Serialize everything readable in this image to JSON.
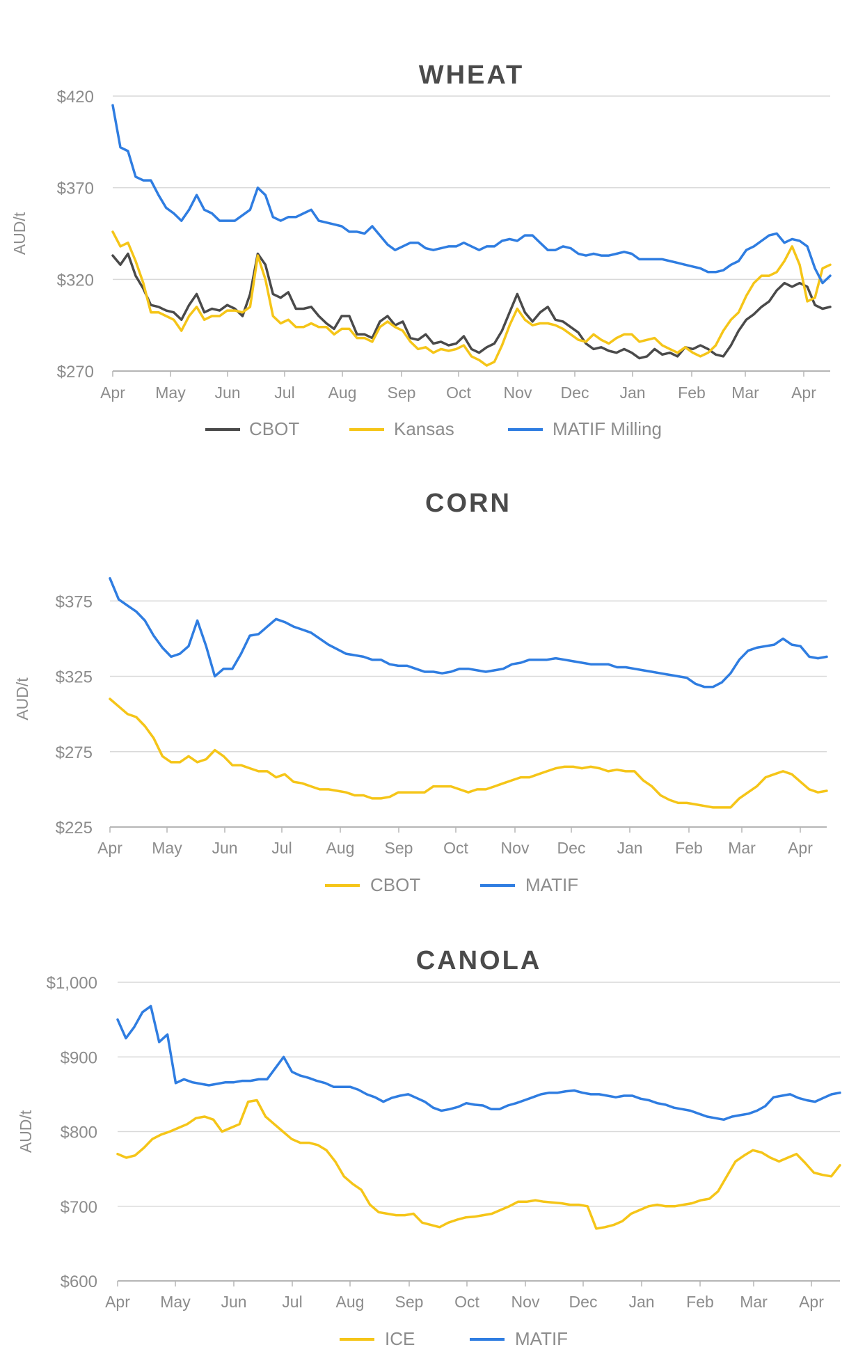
{
  "months": [
    "Apr",
    "May",
    "Jun",
    "Jul",
    "Aug",
    "Sep",
    "Oct",
    "Nov",
    "Dec",
    "Jan",
    "Feb",
    "Mar",
    "Apr"
  ],
  "colors": {
    "black": "#4a4a4a",
    "yellow": "#f5c518",
    "blue": "#2f7de1",
    "grid": "#d9d9d9",
    "axis": "#b5b5b5",
    "text": "#8c8c8c",
    "title": "#4a4a4a"
  },
  "chart_data": [
    {
      "type": "line",
      "title": "WHEAT",
      "ylabel": "AUD/t",
      "xlabel": "",
      "x_ticks": [
        "Apr",
        "May",
        "Jun",
        "Jul",
        "Aug",
        "Sep",
        "Oct",
        "Nov",
        "Dec",
        "Jan",
        "Feb",
        "Mar",
        "Apr"
      ],
      "y_ticks": [
        270,
        320,
        370,
        420
      ],
      "y_tick_labels": [
        "$270",
        "$320",
        "$370",
        "$420"
      ],
      "ylim": [
        270,
        420
      ],
      "grid": true,
      "legend": "bottom",
      "series": [
        {
          "name": "CBOT",
          "color": "#4a4a4a",
          "values": [
            333,
            328,
            334,
            322,
            315,
            306,
            305,
            303,
            302,
            298,
            306,
            312,
            302,
            304,
            303,
            306,
            304,
            300,
            312,
            334,
            328,
            312,
            310,
            313,
            304,
            304,
            305,
            300,
            296,
            293,
            300,
            300,
            290,
            290,
            288,
            297,
            300,
            295,
            297,
            288,
            287,
            290,
            285,
            286,
            284,
            285,
            289,
            282,
            280,
            283,
            285,
            292,
            302,
            312,
            302,
            297,
            302,
            305,
            298,
            297,
            294,
            291,
            285,
            282,
            283,
            281,
            280,
            282,
            280,
            277,
            278,
            282,
            279,
            280,
            278,
            283,
            282,
            284,
            282,
            279,
            278,
            284,
            292,
            298,
            301,
            305,
            308,
            314,
            318,
            316,
            318,
            316,
            306,
            304,
            305
          ]
        },
        {
          "name": "Kansas",
          "color": "#f5c518",
          "values": [
            346,
            338,
            340,
            330,
            318,
            302,
            302,
            300,
            298,
            292,
            300,
            305,
            298,
            300,
            300,
            303,
            303,
            302,
            305,
            333,
            320,
            300,
            296,
            298,
            294,
            294,
            296,
            294,
            294,
            290,
            293,
            293,
            288,
            288,
            286,
            294,
            297,
            294,
            292,
            286,
            282,
            283,
            280,
            282,
            281,
            282,
            284,
            278,
            276,
            273,
            275,
            284,
            295,
            304,
            298,
            295,
            296,
            296,
            295,
            293,
            290,
            287,
            286,
            290,
            287,
            285,
            288,
            290,
            290,
            286,
            287,
            288,
            284,
            282,
            280,
            283,
            280,
            278,
            280,
            284,
            292,
            298,
            302,
            311,
            318,
            322,
            322,
            324,
            330,
            338,
            328,
            308,
            310,
            326,
            328
          ]
        },
        {
          "name": "MATIF Milling",
          "color": "#2f7de1",
          "values": [
            415,
            392,
            390,
            376,
            374,
            374,
            366,
            359,
            356,
            352,
            358,
            366,
            358,
            356,
            352,
            352,
            352,
            355,
            358,
            370,
            366,
            354,
            352,
            354,
            354,
            356,
            358,
            352,
            351,
            350,
            349,
            346,
            346,
            345,
            349,
            344,
            339,
            336,
            338,
            340,
            340,
            337,
            336,
            337,
            338,
            338,
            340,
            338,
            336,
            338,
            338,
            341,
            342,
            341,
            344,
            344,
            340,
            336,
            336,
            338,
            337,
            334,
            333,
            334,
            333,
            333,
            334,
            335,
            334,
            331,
            331,
            331,
            331,
            330,
            329,
            328,
            327,
            326,
            324,
            324,
            325,
            328,
            330,
            336,
            338,
            341,
            344,
            345,
            340,
            342,
            341,
            338,
            326,
            318,
            322
          ]
        }
      ]
    },
    {
      "type": "line",
      "title": "CORN",
      "ylabel": "AUD/t",
      "xlabel": "",
      "x_ticks": [
        "Apr",
        "May",
        "Jun",
        "Jul",
        "Aug",
        "Sep",
        "Oct",
        "Nov",
        "Dec",
        "Jan",
        "Feb",
        "Mar",
        "Apr"
      ],
      "y_ticks": [
        225,
        275,
        325,
        375
      ],
      "y_tick_labels": [
        "$225",
        "$275",
        "$325",
        "$375"
      ],
      "ylim": [
        225,
        395
      ],
      "grid": true,
      "legend": "bottom",
      "series": [
        {
          "name": "CBOT",
          "color": "#f5c518",
          "values": [
            310,
            305,
            300,
            298,
            292,
            284,
            272,
            268,
            268,
            272,
            268,
            270,
            276,
            272,
            266,
            266,
            264,
            262,
            262,
            258,
            260,
            255,
            254,
            252,
            250,
            250,
            249,
            248,
            246,
            246,
            244,
            244,
            245,
            248,
            248,
            248,
            248,
            252,
            252,
            252,
            250,
            248,
            250,
            250,
            252,
            254,
            256,
            258,
            258,
            260,
            262,
            264,
            265,
            265,
            264,
            265,
            264,
            262,
            263,
            262,
            262,
            256,
            252,
            246,
            243,
            241,
            241,
            240,
            239,
            238,
            238,
            238,
            244,
            248,
            252,
            258,
            260,
            262,
            260,
            255,
            250,
            248,
            249
          ]
        },
        {
          "name": "MATIF",
          "color": "#2f7de1",
          "values": [
            390,
            376,
            372,
            368,
            362,
            352,
            344,
            338,
            340,
            345,
            362,
            345,
            325,
            330,
            330,
            340,
            352,
            353,
            358,
            363,
            361,
            358,
            356,
            354,
            350,
            346,
            343,
            340,
            339,
            338,
            336,
            336,
            333,
            332,
            332,
            330,
            328,
            328,
            327,
            328,
            330,
            330,
            329,
            328,
            329,
            330,
            333,
            334,
            336,
            336,
            336,
            337,
            336,
            335,
            334,
            333,
            333,
            333,
            331,
            331,
            330,
            329,
            328,
            327,
            326,
            325,
            324,
            320,
            318,
            318,
            321,
            327,
            336,
            342,
            344,
            345,
            346,
            350,
            346,
            345,
            338,
            337,
            338
          ]
        }
      ]
    },
    {
      "type": "line",
      "title": "CANOLA",
      "ylabel": "AUD/t",
      "xlabel": "",
      "x_ticks": [
        "Apr",
        "May",
        "Jun",
        "Jul",
        "Aug",
        "Sep",
        "Oct",
        "Nov",
        "Dec",
        "Jan",
        "Feb",
        "Mar",
        "Apr"
      ],
      "y_ticks": [
        600,
        700,
        800,
        900,
        1000
      ],
      "y_tick_labels": [
        "$600",
        "$700",
        "$800",
        "$900",
        "$1,000"
      ],
      "ylim": [
        600,
        1000
      ],
      "grid": true,
      "legend": "bottom",
      "series": [
        {
          "name": "ICE",
          "color": "#f5c518",
          "values": [
            770,
            765,
            768,
            778,
            790,
            796,
            800,
            805,
            810,
            818,
            820,
            816,
            800,
            805,
            810,
            840,
            842,
            820,
            810,
            800,
            790,
            785,
            785,
            782,
            775,
            760,
            740,
            730,
            722,
            702,
            692,
            690,
            688,
            688,
            690,
            678,
            675,
            672,
            678,
            682,
            685,
            686,
            688,
            690,
            695,
            700,
            706,
            706,
            708,
            706,
            705,
            704,
            702,
            702,
            700,
            670,
            672,
            675,
            680,
            690,
            695,
            700,
            702,
            700,
            700,
            702,
            704,
            708,
            710,
            720,
            740,
            760,
            768,
            775,
            772,
            765,
            760,
            765,
            770,
            758,
            745,
            742,
            740,
            755
          ]
        },
        {
          "name": "MATIF",
          "color": "#2f7de1",
          "values": [
            950,
            925,
            940,
            960,
            968,
            920,
            930,
            865,
            870,
            866,
            864,
            862,
            864,
            866,
            866,
            868,
            868,
            870,
            870,
            885,
            900,
            880,
            875,
            872,
            868,
            865,
            860,
            860,
            860,
            856,
            850,
            846,
            840,
            845,
            848,
            850,
            845,
            840,
            832,
            828,
            830,
            833,
            838,
            836,
            835,
            830,
            830,
            835,
            838,
            842,
            846,
            850,
            852,
            852,
            854,
            855,
            852,
            850,
            850,
            848,
            846,
            848,
            848,
            844,
            842,
            838,
            836,
            832,
            830,
            828,
            824,
            820,
            818,
            816,
            820,
            822,
            824,
            828,
            834,
            846,
            848,
            850,
            845,
            842,
            840,
            845,
            850,
            852
          ]
        }
      ]
    }
  ]
}
